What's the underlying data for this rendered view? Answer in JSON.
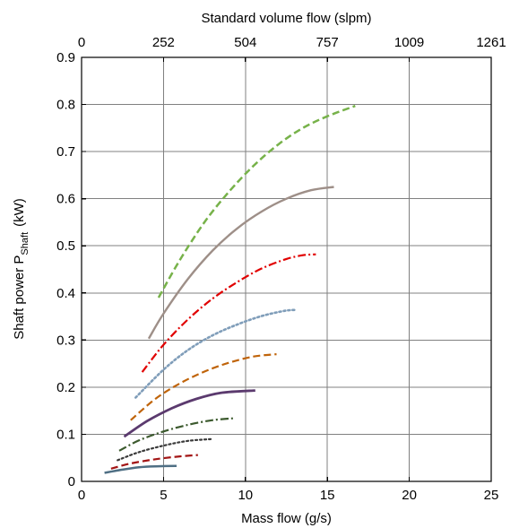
{
  "chart_data": {
    "type": "line",
    "xlabel": "Mass flow (g/s)",
    "ylabel_main": "Shaft power P",
    "ylabel_sub": "Shaft",
    "ylabel_unit": "(kW)",
    "x2label": "Standard volume flow (slpm)",
    "xlim": [
      0,
      25
    ],
    "ylim": [
      0,
      0.9
    ],
    "x_ticks": [
      "0",
      "5",
      "10",
      "15",
      "20",
      "25"
    ],
    "y_ticks": [
      "0",
      "0.1",
      "0.2",
      "0.3",
      "0.4",
      "0.5",
      "0.6",
      "0.7",
      "0.8",
      "0.9"
    ],
    "x2_ticks": [
      "0",
      "252",
      "504",
      "757",
      "1009",
      "1261"
    ],
    "grid": true,
    "series": [
      {
        "color": "#4f6f84",
        "dash": "solid",
        "width": 2.5,
        "x": [
          1.4,
          2.5,
          3.5,
          4.5,
          5.8
        ],
        "y": [
          0.018,
          0.025,
          0.03,
          0.032,
          0.033
        ]
      },
      {
        "color": "#a31515",
        "dash": "dashed",
        "width": 2.2,
        "x": [
          1.8,
          3.0,
          4.5,
          6.0,
          7.1
        ],
        "y": [
          0.027,
          0.038,
          0.047,
          0.053,
          0.056
        ]
      },
      {
        "color": "#3a3a3a",
        "dash": "dotted",
        "width": 2.2,
        "x": [
          2.2,
          3.5,
          5.0,
          6.5,
          8.0
        ],
        "y": [
          0.045,
          0.062,
          0.076,
          0.086,
          0.09
        ]
      },
      {
        "color": "#3c5a2e",
        "dash": "dashdot",
        "width": 2.2,
        "x": [
          2.3,
          3.5,
          5.0,
          6.5,
          8.0,
          9.3
        ],
        "y": [
          0.065,
          0.087,
          0.106,
          0.12,
          0.13,
          0.134
        ]
      },
      {
        "color": "#5b3a6e",
        "dash": "solid",
        "width": 2.8,
        "x": [
          2.6,
          4.0,
          5.5,
          7.0,
          8.5,
          10.6
        ],
        "y": [
          0.095,
          0.128,
          0.155,
          0.175,
          0.188,
          0.193
        ]
      },
      {
        "color": "#c0640a",
        "dash": "dashed",
        "width": 2.2,
        "x": [
          3.0,
          4.5,
          6.0,
          7.5,
          9.0,
          10.5,
          11.9
        ],
        "y": [
          0.13,
          0.175,
          0.208,
          0.233,
          0.252,
          0.265,
          0.27
        ]
      },
      {
        "color": "#7f9db9",
        "dash": "dotted",
        "width": 2.6,
        "x": [
          3.3,
          5.0,
          6.5,
          8.0,
          9.5,
          11.0,
          12.4,
          13.1
        ],
        "y": [
          0.178,
          0.237,
          0.279,
          0.31,
          0.333,
          0.351,
          0.362,
          0.364
        ]
      },
      {
        "color": "#e10000",
        "dash": "dashdot",
        "width": 2.2,
        "x": [
          3.7,
          5.0,
          6.5,
          8.0,
          9.5,
          11.0,
          12.5,
          13.5,
          14.3
        ],
        "y": [
          0.232,
          0.29,
          0.344,
          0.388,
          0.423,
          0.452,
          0.472,
          0.48,
          0.482
        ]
      },
      {
        "color": "#9e8f88",
        "dash": "solid",
        "width": 2.4,
        "x": [
          4.1,
          5.0,
          6.5,
          8.0,
          9.5,
          11.0,
          12.5,
          14.0,
          15.4
        ],
        "y": [
          0.303,
          0.356,
          0.43,
          0.49,
          0.537,
          0.573,
          0.6,
          0.618,
          0.625
        ]
      },
      {
        "color": "#77b24a",
        "dash": "dashed",
        "width": 2.5,
        "x": [
          4.7,
          6.0,
          7.5,
          9.0,
          10.5,
          12.0,
          13.5,
          15.0,
          16.7
        ],
        "y": [
          0.39,
          0.47,
          0.55,
          0.615,
          0.67,
          0.715,
          0.75,
          0.775,
          0.797
        ]
      }
    ]
  }
}
